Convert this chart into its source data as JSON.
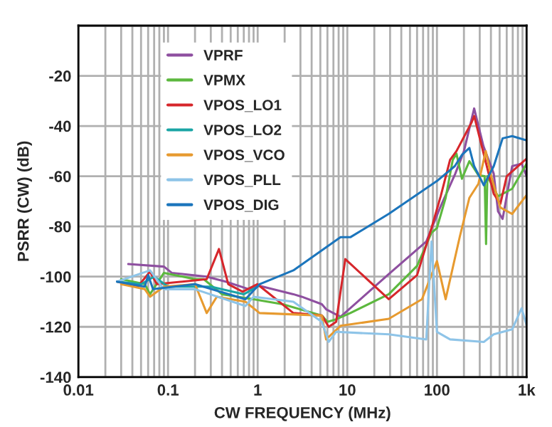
{
  "chart_data": {
    "type": "line",
    "xlabel": "CW FREQUENCY (MHz)",
    "ylabel": "PSRR (CW) (dB)",
    "log": "x",
    "xlim": [
      0.01,
      1000
    ],
    "xticks": [
      0.01,
      0.1,
      1,
      10,
      100,
      {
        "value": 1000,
        "label": "1k"
      }
    ],
    "ylim": [
      -140,
      0
    ],
    "yticks": [
      -140,
      -120,
      -100,
      -80,
      -60,
      -40,
      -20,
      {
        "value": 0,
        "label": null
      }
    ],
    "grid": true,
    "legend": "top left",
    "marker": "none",
    "line_style": "solid",
    "series": [
      {
        "name": "VPRF",
        "color": "#8e4fa0",
        "x": [
          0.036,
          0.09,
          0.11,
          0.27,
          0.44,
          0.8,
          1,
          2.5,
          3.1,
          5.2,
          5.8,
          8.4,
          29,
          76,
          110,
          160,
          200,
          260,
          330,
          430,
          480,
          540,
          690,
          880,
          1000
        ],
        "values": [
          -95,
          -96,
          -98.5,
          -100,
          -102,
          -105,
          -103.5,
          -107,
          -108,
          -111,
          -113,
          -116,
          -99,
          -86,
          -72,
          -59,
          -50,
          -33,
          -48,
          -59,
          -74,
          -77,
          -56,
          -55,
          -60
        ]
      },
      {
        "name": "VPMX",
        "color": "#5cb83e",
        "x": [
          0.03,
          0.055,
          0.063,
          0.09,
          0.2,
          0.25,
          0.4,
          0.9,
          1.9,
          5.2,
          6,
          7.5,
          10.8,
          29,
          60,
          87,
          100,
          125,
          150,
          165,
          190,
          230,
          290,
          340,
          353,
          365,
          480,
          690,
          1000
        ],
        "values": [
          -101,
          -103,
          -107,
          -98.5,
          -101,
          -101,
          -107,
          -109,
          -111,
          -115.5,
          -118,
          -117,
          -114.5,
          -107,
          -95.7,
          -82.5,
          -80.6,
          -68.6,
          -53.5,
          -51,
          -61,
          -54,
          -59.6,
          -60,
          -87,
          -60,
          -68,
          -65,
          -55
        ]
      },
      {
        "name": "VPOS_LO1",
        "color": "#d6262b",
        "x": [
          0.027,
          0.046,
          0.063,
          0.075,
          0.27,
          0.37,
          0.47,
          0.68,
          0.99,
          2.5,
          5.2,
          6.2,
          7.5,
          9.5,
          29,
          60,
          87,
          110,
          140,
          165,
          244,
          260,
          430,
          510,
          600,
          1000
        ],
        "values": [
          -102,
          -104,
          -98,
          -103,
          -101,
          -89,
          -103,
          -106,
          -103,
          -114.5,
          -115.5,
          -120,
          -118,
          -93,
          -109,
          -99.4,
          -80.6,
          -68,
          -53.5,
          -50,
          -38.5,
          -36,
          -67,
          -71,
          -60,
          -53
        ]
      },
      {
        "name": "VPOS_LO2",
        "color": "#1aa5a5",
        "x": [
          0.027,
          0.05,
          0.07,
          0.1,
          0.3,
          0.7,
          1
        ],
        "values": [
          -102,
          -103,
          -100,
          -104,
          -104,
          -107,
          -104
        ]
      },
      {
        "name": "VPOS_VCO",
        "color": "#e79a2f",
        "x": [
          0.03,
          0.055,
          0.063,
          0.09,
          0.2,
          0.27,
          0.35,
          0.73,
          1.05,
          5.2,
          5.8,
          8.4,
          29,
          68,
          100,
          125,
          180,
          230,
          290,
          350,
          400,
          510,
          690,
          1000
        ],
        "values": [
          -103,
          -105,
          -108,
          -104,
          -103,
          -114.5,
          -108,
          -110,
          -114.5,
          -115.5,
          -125,
          -119.6,
          -116.8,
          -109,
          -93.8,
          -109,
          -84,
          -68.6,
          -63,
          -50,
          -59.6,
          -72.5,
          -75,
          -67.5
        ]
      },
      {
        "name": "VPOS_PLL",
        "color": "#8ec4e8",
        "x": [
          0.027,
          0.063,
          0.09,
          0.2,
          0.73,
          0.9,
          2.5,
          5.2,
          6.2,
          7.5,
          29,
          76,
          87,
          100,
          140,
          333,
          430,
          690,
          880,
          1000
        ],
        "values": [
          -102,
          -97.5,
          -105,
          -105,
          -111.7,
          -108,
          -110,
          -118,
          -126,
          -122,
          -123,
          -125,
          -86,
          -122,
          -125,
          -126,
          -123,
          -121,
          -112.6,
          -119.4
        ]
      },
      {
        "name": "VPOS_DIG",
        "color": "#1b75bc",
        "x": [
          0.027,
          0.055,
          0.06,
          0.068,
          0.2,
          0.73,
          1.05,
          2.5,
          8.4,
          10.8,
          29,
          100,
          158,
          190,
          230,
          260,
          333,
          430,
          540,
          690,
          1000
        ],
        "values": [
          -102,
          -104,
          -99.4,
          -105,
          -103,
          -109,
          -103,
          -97.5,
          -84.3,
          -84.3,
          -75,
          -61.9,
          -56,
          -51.5,
          -48.7,
          -56,
          -63.6,
          -56,
          -44.9,
          -44,
          -45.7
        ]
      }
    ]
  }
}
